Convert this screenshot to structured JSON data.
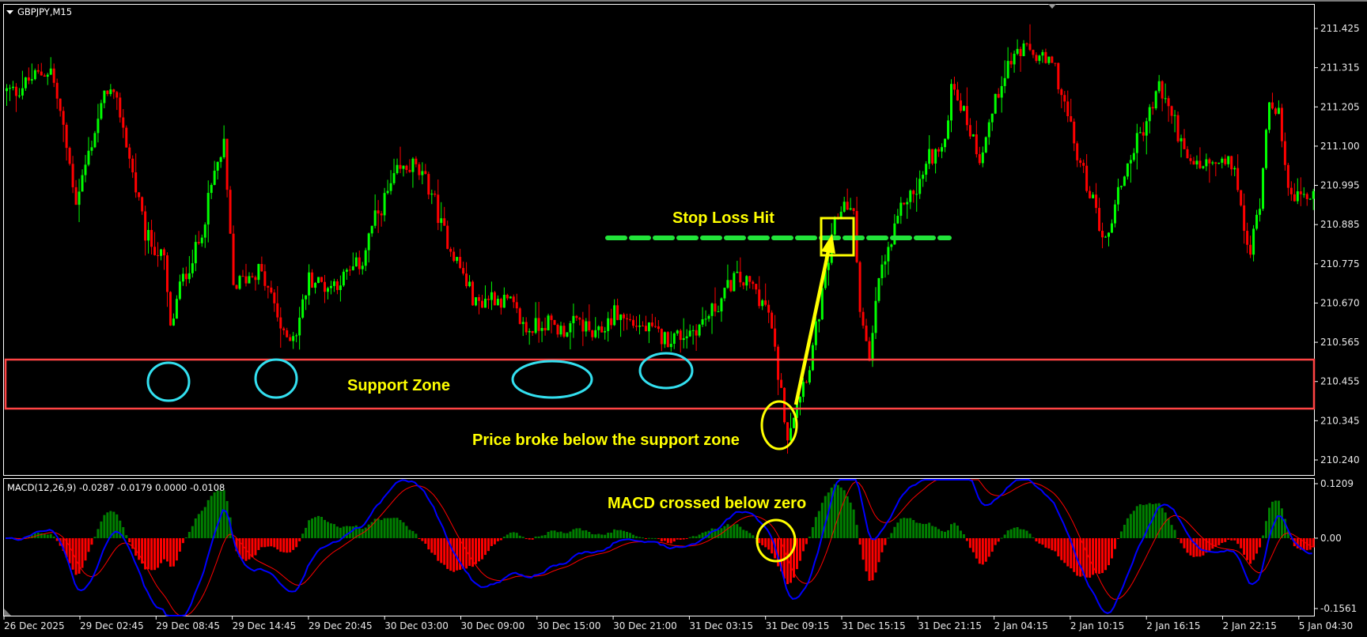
{
  "window": {
    "symbol_label": "GBPJPY,M15"
  },
  "macd_panel": {
    "label": "MACD(12,26,9) -0.0287 -0.0179 0.0000 -0.0108"
  },
  "colors": {
    "bull": "#00ff00",
    "bear": "#ff0000",
    "macd_line": "#0000ff",
    "signal_line": "#ff0000",
    "hist_pos": "#008000",
    "hist_neg": "#ff0000",
    "support": "#ff4444",
    "circle": "#33e0f0",
    "annotation": "#ffff00",
    "stop_line": "#22e43a"
  },
  "annotations": {
    "support_zone": "Support Zone",
    "break_text": "Price broke below the support zone",
    "stop_loss": "Stop Loss Hit",
    "macd_cross": "MACD crossed below zero"
  },
  "chart_data": [
    {
      "type": "candlestick",
      "title": "GBPJPY,M15",
      "y_ticks": [
        "211.425",
        "211.315",
        "211.205",
        "211.100",
        "210.995",
        "210.885",
        "210.775",
        "210.670",
        "210.565",
        "210.455",
        "210.345",
        "210.240"
      ],
      "ylim": [
        210.24,
        211.425
      ],
      "x_ticks": [
        "26 Dec 2025",
        "29 Dec 02:45",
        "29 Dec 08:45",
        "29 Dec 14:45",
        "29 Dec 20:45",
        "30 Dec 03:00",
        "30 Dec 09:00",
        "30 Dec 15:00",
        "30 Dec 21:00",
        "31 Dec 03:15",
        "31 Dec 09:15",
        "31 Dec 15:15",
        "31 Dec 21:15",
        "2 Jan 04:15",
        "2 Jan 10:15",
        "2 Jan 16:15",
        "2 Jan 22:15",
        "5 Jan 04:30"
      ],
      "grid": false,
      "support_zone": [
        210.381,
        210.518
      ],
      "stop_loss_level": 210.85,
      "approx_mid_price_by_bar": [
        [
          3,
          211.253
        ],
        [
          8,
          211.289
        ],
        [
          14,
          211.313
        ],
        [
          17,
          211.193
        ],
        [
          22,
          210.954
        ],
        [
          28,
          211.145
        ],
        [
          32,
          211.265
        ],
        [
          36,
          211.193
        ],
        [
          40,
          211.026
        ],
        [
          44,
          210.859
        ],
        [
          50,
          210.787
        ],
        [
          52,
          210.596
        ],
        [
          55,
          210.716
        ],
        [
          61,
          210.835
        ],
        [
          66,
          211.026
        ],
        [
          69,
          211.098
        ],
        [
          72,
          210.716
        ],
        [
          76,
          210.74
        ],
        [
          80,
          210.763
        ],
        [
          85,
          210.668
        ],
        [
          88,
          210.573
        ],
        [
          92,
          210.596
        ],
        [
          96,
          210.74
        ],
        [
          102,
          210.716
        ],
        [
          107,
          210.74
        ],
        [
          113,
          210.787
        ],
        [
          116,
          210.883
        ],
        [
          120,
          210.954
        ],
        [
          124,
          211.026
        ],
        [
          129,
          211.05
        ],
        [
          135,
          210.978
        ],
        [
          138,
          210.883
        ],
        [
          143,
          210.787
        ],
        [
          149,
          210.668
        ],
        [
          154,
          210.692
        ],
        [
          160,
          210.668
        ],
        [
          165,
          210.596
        ],
        [
          171,
          210.62
        ],
        [
          176,
          210.596
        ],
        [
          182,
          210.62
        ],
        [
          187,
          210.573
        ],
        [
          193,
          210.644
        ],
        [
          198,
          210.62
        ],
        [
          204,
          210.596
        ],
        [
          209,
          210.573
        ],
        [
          215,
          210.585
        ],
        [
          220,
          210.609
        ],
        [
          226,
          210.668
        ],
        [
          231,
          210.74
        ],
        [
          237,
          210.716
        ],
        [
          242,
          210.644
        ],
        [
          245,
          210.477
        ],
        [
          248,
          210.31
        ],
        [
          251,
          210.405
        ],
        [
          255,
          210.501
        ],
        [
          259,
          210.692
        ],
        [
          263,
          210.883
        ],
        [
          266,
          210.954
        ],
        [
          269,
          210.907
        ],
        [
          271,
          210.668
        ],
        [
          274,
          210.501
        ],
        [
          277,
          210.74
        ],
        [
          281,
          210.835
        ],
        [
          285,
          210.954
        ],
        [
          289,
          210.978
        ],
        [
          293,
          211.074
        ],
        [
          298,
          211.098
        ],
        [
          300,
          211.289
        ],
        [
          304,
          211.193
        ],
        [
          309,
          211.074
        ],
        [
          313,
          211.193
        ],
        [
          317,
          211.313
        ],
        [
          321,
          211.361
        ],
        [
          325,
          211.361
        ],
        [
          329,
          211.337
        ],
        [
          333,
          211.313
        ],
        [
          336,
          211.217
        ],
        [
          340,
          211.074
        ],
        [
          344,
          210.978
        ],
        [
          349,
          210.835
        ],
        [
          353,
          210.978
        ],
        [
          358,
          211.098
        ],
        [
          362,
          211.169
        ],
        [
          366,
          211.265
        ],
        [
          371,
          211.169
        ],
        [
          375,
          211.05
        ],
        [
          380,
          211.05
        ],
        [
          386,
          211.05
        ],
        [
          390,
          211.05
        ],
        [
          393,
          210.859
        ],
        [
          395,
          210.811
        ],
        [
          398,
          210.954
        ],
        [
          401,
          211.241
        ],
        [
          404,
          211.193
        ],
        [
          406,
          211.026
        ],
        [
          410,
          210.954
        ],
        [
          415,
          210.978
        ]
      ]
    },
    {
      "type": "line",
      "title": "MACD(12,26,9)",
      "values_printed": [
        -0.0287,
        -0.0179,
        0.0,
        -0.0108
      ],
      "y_ticks": [
        "0.1209",
        "0.00",
        "-0.1561"
      ],
      "ylim": [
        -0.1561,
        0.1209
      ]
    }
  ]
}
